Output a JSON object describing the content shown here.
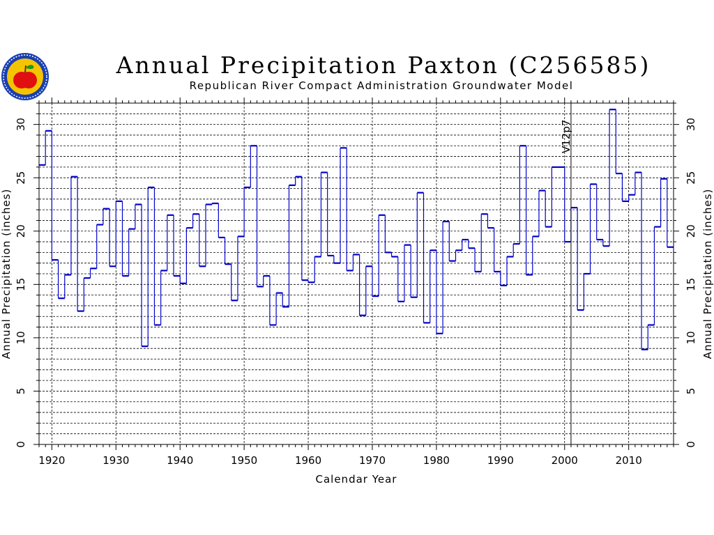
{
  "header": {
    "title": "Annual Precipitation Paxton (C256585)",
    "subtitle": "Republican River Compact Administration Groundwater Model"
  },
  "logo": {
    "icon": "apple-seal-icon",
    "colors": {
      "ring": "#1a3fb0",
      "inner": "#f5c400",
      "apple": "#e01010",
      "leaf": "#1a9a1a"
    }
  },
  "chart_data": {
    "type": "line",
    "step": true,
    "title": "Annual Precipitation Paxton (C256585)",
    "subtitle": "Republican River Compact Administration Groundwater Model",
    "xlabel": "Calendar Year",
    "ylabel": "Annual Precipitation (inches)",
    "ylabel_right": "Annual Precipitation (inches)",
    "xlim": [
      1918,
      2017
    ],
    "ylim": [
      0,
      32
    ],
    "xticks": [
      1920,
      1930,
      1940,
      1950,
      1960,
      1970,
      1980,
      1990,
      2000,
      2010
    ],
    "yticks": [
      0,
      5,
      10,
      15,
      20,
      25,
      30
    ],
    "grid": true,
    "line_color": "#0000cc",
    "vline": {
      "x": 2001,
      "label": "V12p7"
    },
    "series": [
      {
        "x": [
          1918,
          1919,
          1920,
          1921,
          1922,
          1923,
          1924,
          1925,
          1926,
          1927,
          1928,
          1929,
          1930,
          1931,
          1932,
          1933,
          1934,
          1935,
          1936,
          1937,
          1938,
          1939,
          1940,
          1941,
          1942,
          1943,
          1944,
          1945,
          1946,
          1947,
          1948,
          1949,
          1950,
          1951,
          1952,
          1953,
          1954,
          1955,
          1956,
          1957,
          1958,
          1959,
          1960,
          1961,
          1962,
          1963,
          1964,
          1965,
          1966,
          1967,
          1968,
          1969,
          1970,
          1971,
          1972,
          1973,
          1974,
          1975,
          1976,
          1977,
          1978,
          1979,
          1980,
          1981,
          1982,
          1983,
          1984,
          1985,
          1986,
          1987,
          1988,
          1989,
          1990,
          1991,
          1992,
          1993,
          1994,
          1995,
          1996,
          1997,
          1998,
          1999,
          2000,
          2001,
          2002,
          2003,
          2004,
          2005,
          2006,
          2007,
          2008,
          2009,
          2010,
          2011,
          2012,
          2013,
          2014,
          2015,
          2016
        ],
        "values": [
          26.2,
          29.4,
          17.3,
          13.7,
          15.9,
          25.1,
          12.5,
          15.6,
          16.5,
          20.6,
          22.1,
          16.7,
          22.8,
          15.8,
          20.2,
          22.5,
          9.2,
          24.1,
          11.2,
          16.3,
          21.5,
          15.8,
          15.1,
          20.3,
          21.6,
          16.7,
          22.5,
          22.6,
          19.4,
          16.9,
          13.5,
          19.5,
          24.1,
          28.0,
          14.8,
          15.8,
          11.2,
          14.2,
          12.9,
          24.3,
          25.1,
          15.4,
          15.2,
          17.6,
          25.5,
          17.7,
          17.0,
          27.8,
          16.3,
          17.8,
          12.1,
          16.7,
          13.9,
          21.5,
          18.0,
          17.6,
          13.4,
          18.7,
          13.8,
          23.6,
          11.4,
          18.2,
          10.4,
          20.9,
          17.2,
          18.2,
          19.2,
          18.4,
          16.2,
          21.6,
          20.3,
          16.2,
          14.9,
          17.6,
          18.8,
          28.0,
          15.9,
          19.5,
          23.8,
          20.4,
          26.0,
          26.0,
          19.0,
          22.2,
          12.6,
          16.0,
          24.4,
          19.2,
          18.6,
          31.4,
          25.4,
          22.8,
          23.4,
          25.5,
          8.9,
          11.2,
          20.4,
          24.9,
          18.5
        ]
      }
    ]
  }
}
